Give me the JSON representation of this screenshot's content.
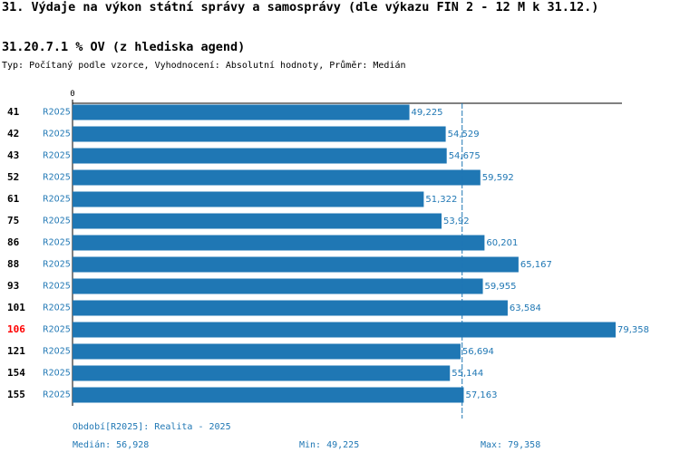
{
  "header": {
    "title": "31. Výdaje na výkon státní správy a samosprávy (dle výkazu FIN 2 - 12 M k 31.12.)",
    "subtitle": "31.20.7.1 % OV (z hlediska agend)",
    "meta": "Typ: Počítaný podle vzorce, Vyhodnocení: Absolutní hodnoty, Průměr: Medián"
  },
  "colors": {
    "bar": "#1f77b4",
    "value_text": "#1f77b4",
    "highlight": "#ff0000",
    "axis": "#000000"
  },
  "chart_data": {
    "type": "bar",
    "orientation": "horizontal",
    "axis_zero_label": "0",
    "xlim": [
      0,
      79.358
    ],
    "median_line": 56.928,
    "series_label": "R2025",
    "highlight_category": "106",
    "categories": [
      "41",
      "42",
      "43",
      "52",
      "61",
      "75",
      "86",
      "88",
      "93",
      "101",
      "106",
      "121",
      "154",
      "155"
    ],
    "values": [
      49.225,
      54.529,
      54.675,
      59.592,
      51.322,
      53.92,
      60.201,
      65.167,
      59.955,
      63.584,
      79.358,
      56.694,
      55.144,
      57.163
    ],
    "value_labels": [
      "49,225",
      "54,529",
      "54,675",
      "59,592",
      "51,322",
      "53,92",
      "60,201",
      "65,167",
      "59,955",
      "63,584",
      "79,358",
      "56,694",
      "55,144",
      "57,163"
    ]
  },
  "footer": {
    "period": "Období[R2025]: Realita - 2025",
    "median": "Medián: 56,928",
    "min": "Min: 49,225",
    "max": "Max: 79,358"
  }
}
